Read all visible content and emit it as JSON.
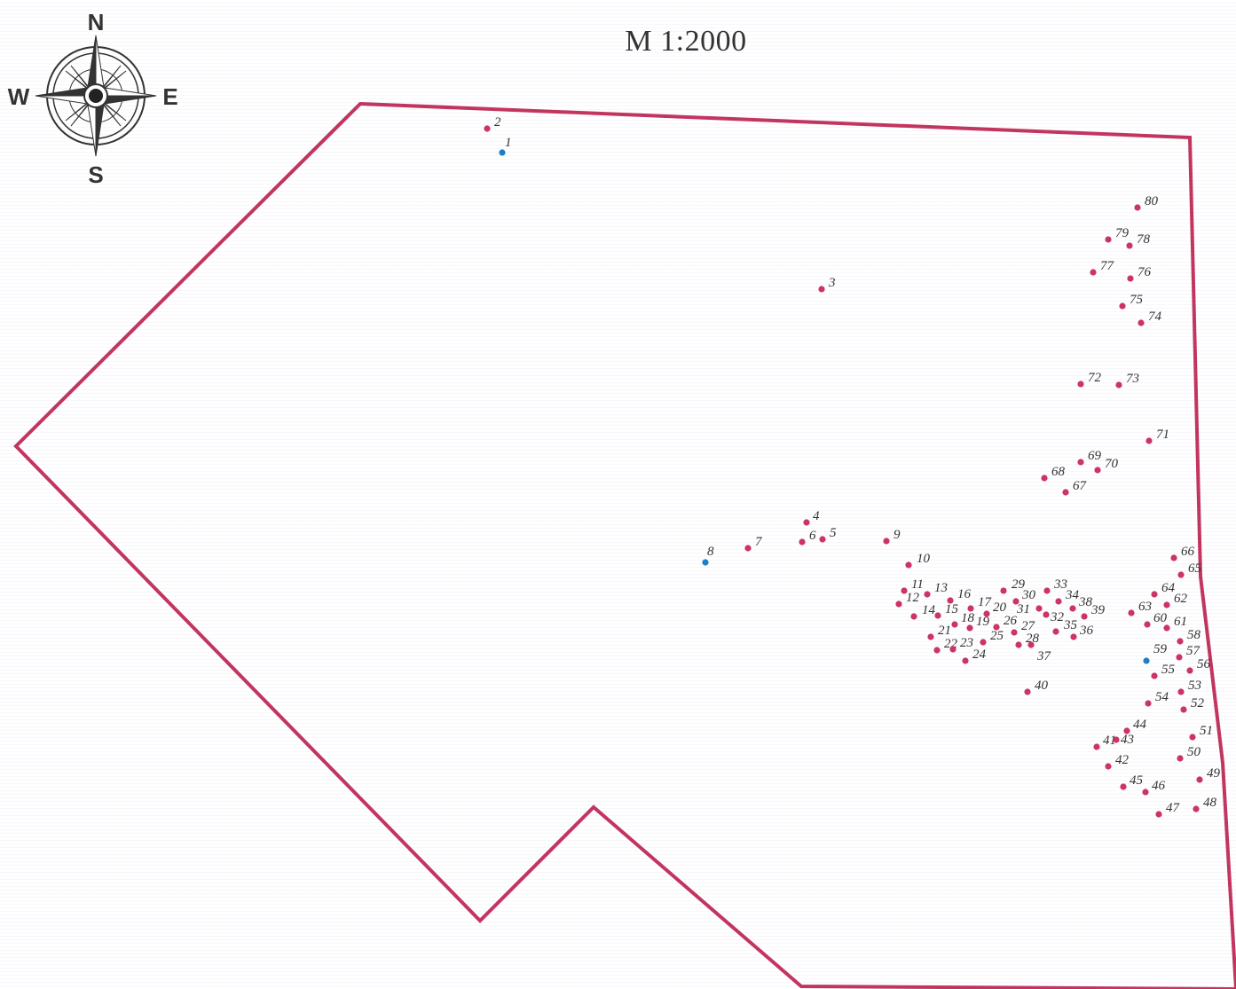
{
  "scale_label": "M 1:2000",
  "compass": {
    "north": "N",
    "south": "S",
    "east": "E",
    "west": "W"
  },
  "colors": {
    "boundary": "#c2355f",
    "point": "#cc3366",
    "point_special": "#1e7fc8",
    "compass": "#333333"
  },
  "special_points": [
    "1",
    "8",
    "59"
  ],
  "points": [
    {
      "id": "1"
    },
    {
      "id": "2"
    },
    {
      "id": "3"
    },
    {
      "id": "4"
    },
    {
      "id": "5"
    },
    {
      "id": "6"
    },
    {
      "id": "7"
    },
    {
      "id": "8"
    },
    {
      "id": "9"
    },
    {
      "id": "10"
    },
    {
      "id": "11"
    },
    {
      "id": "12"
    },
    {
      "id": "13"
    },
    {
      "id": "14"
    },
    {
      "id": "15"
    },
    {
      "id": "16"
    },
    {
      "id": "17"
    },
    {
      "id": "18"
    },
    {
      "id": "19"
    },
    {
      "id": "20"
    },
    {
      "id": "21"
    },
    {
      "id": "22"
    },
    {
      "id": "23"
    },
    {
      "id": "24"
    },
    {
      "id": "25"
    },
    {
      "id": "26"
    },
    {
      "id": "27"
    },
    {
      "id": "28"
    },
    {
      "id": "29"
    },
    {
      "id": "30"
    },
    {
      "id": "31"
    },
    {
      "id": "32"
    },
    {
      "id": "33"
    },
    {
      "id": "34"
    },
    {
      "id": "35"
    },
    {
      "id": "36"
    },
    {
      "id": "37"
    },
    {
      "id": "38"
    },
    {
      "id": "39"
    },
    {
      "id": "40"
    },
    {
      "id": "41"
    },
    {
      "id": "42"
    },
    {
      "id": "43"
    },
    {
      "id": "44"
    },
    {
      "id": "45"
    },
    {
      "id": "46"
    },
    {
      "id": "47"
    },
    {
      "id": "48"
    },
    {
      "id": "49"
    },
    {
      "id": "50"
    },
    {
      "id": "51"
    },
    {
      "id": "52"
    },
    {
      "id": "53"
    },
    {
      "id": "54"
    },
    {
      "id": "55"
    },
    {
      "id": "56"
    },
    {
      "id": "57"
    },
    {
      "id": "58"
    },
    {
      "id": "59"
    },
    {
      "id": "60"
    },
    {
      "id": "61"
    },
    {
      "id": "62"
    },
    {
      "id": "63"
    },
    {
      "id": "64"
    },
    {
      "id": "65"
    },
    {
      "id": "66"
    },
    {
      "id": "67"
    },
    {
      "id": "68"
    },
    {
      "id": "69"
    },
    {
      "id": "70"
    },
    {
      "id": "71"
    },
    {
      "id": "72"
    },
    {
      "id": "73"
    },
    {
      "id": "74"
    },
    {
      "id": "75"
    },
    {
      "id": "76"
    },
    {
      "id": "77"
    },
    {
      "id": "78"
    },
    {
      "id": "79"
    },
    {
      "id": "80"
    }
  ]
}
